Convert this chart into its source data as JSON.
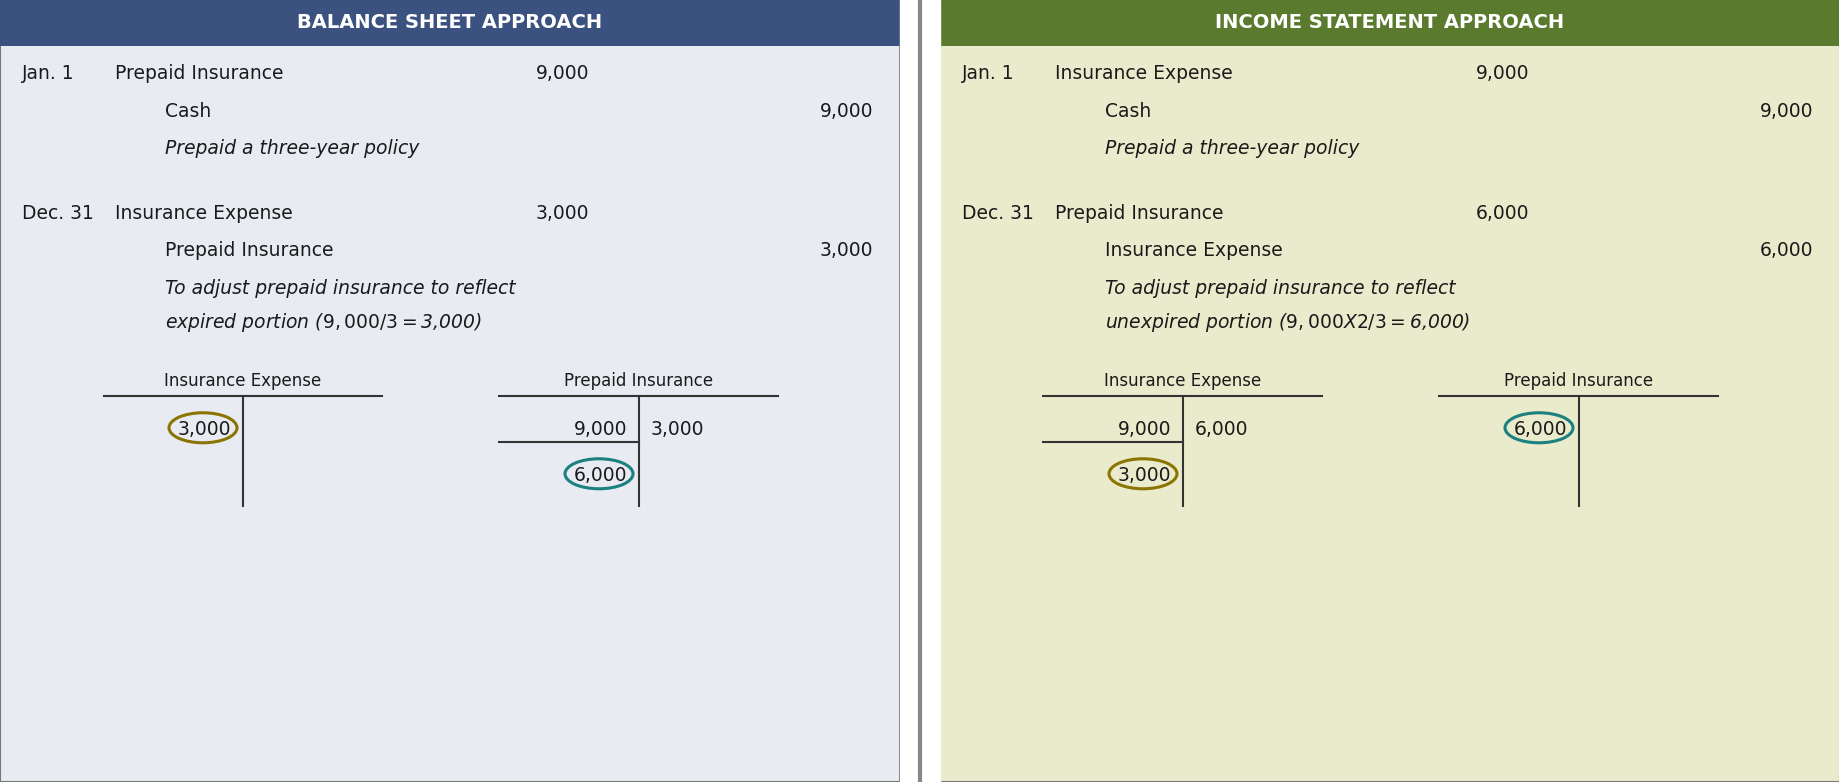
{
  "left_title": "BALANCE SHEET APPROACH",
  "right_title": "INCOME STATEMENT APPROACH",
  "left_header_color": "#3B5280",
  "right_header_color": "#5A7A2E",
  "left_bg_color": "#E8EBF2",
  "right_bg_color": "#EAEACC",
  "title_text_color": "#FFFFFF",
  "body_text_color": "#1a1a1a",
  "font_size_title": 14,
  "font_size_body": 13.5,
  "font_size_small": 12,
  "left_panel": {
    "entry_groups": [
      {
        "date": "Jan. 1",
        "debit_account": "Prepaid Insurance",
        "debit_val": "9,000",
        "credit_account": "Cash",
        "credit_val": "9,000",
        "memo": "Prepaid a three-year policy"
      },
      {
        "date": "Dec. 31",
        "debit_account": "Insurance Expense",
        "debit_val": "3,000",
        "credit_account": "Prepaid Insurance",
        "credit_val": "3,000",
        "memo": "To adjust prepaid insurance to reflect\nexpired portion ($9,000/3 = $3,000)"
      }
    ],
    "t_accounts": [
      {
        "label": "Insurance Expense",
        "left_vals": [
          "3,000"
        ],
        "right_vals": [],
        "extra_line": false,
        "circle_side": "left",
        "circle_val": "3,000",
        "circle_color": "#8B7500",
        "circle_row": 0
      },
      {
        "label": "Prepaid Insurance",
        "left_vals": [
          "9,000"
        ],
        "right_vals": [
          "3,000"
        ],
        "extra_line": true,
        "circle_side": "left",
        "circle_val": "6,000",
        "circle_color": "#1A8080",
        "circle_row": 1
      }
    ]
  },
  "right_panel": {
    "entry_groups": [
      {
        "date": "Jan. 1",
        "debit_account": "Insurance Expense",
        "debit_val": "9,000",
        "credit_account": "Cash",
        "credit_val": "9,000",
        "memo": "Prepaid a three-year policy"
      },
      {
        "date": "Dec. 31",
        "debit_account": "Prepaid Insurance",
        "debit_val": "6,000",
        "credit_account": "Insurance Expense",
        "credit_val": "6,000",
        "memo": "To adjust prepaid insurance to reflect\nunexpired portion ($9,000 X 2/3 = $6,000)"
      }
    ],
    "t_accounts": [
      {
        "label": "Insurance Expense",
        "left_vals": [
          "9,000"
        ],
        "right_vals": [
          "6,000"
        ],
        "extra_line": true,
        "circle_side": "left",
        "circle_val": "3,000",
        "circle_color": "#8B7500",
        "circle_row": 1
      },
      {
        "label": "Prepaid Insurance",
        "left_vals": [
          "6,000"
        ],
        "right_vals": [],
        "extra_line": false,
        "circle_side": "left",
        "circle_val": "6,000",
        "circle_color": "#1A8080",
        "circle_row": 0
      }
    ]
  }
}
